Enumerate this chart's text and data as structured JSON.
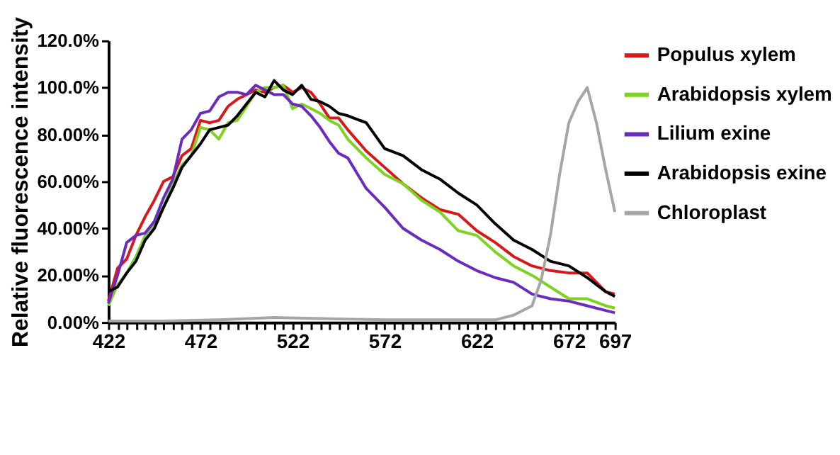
{
  "chart_data": {
    "type": "line",
    "ylabel": "Relative fluorescence intensity",
    "x": [
      422,
      427,
      432,
      437,
      442,
      447,
      452,
      457,
      462,
      467,
      472,
      477,
      482,
      487,
      492,
      497,
      502,
      507,
      512,
      517,
      522,
      527,
      532,
      537,
      542,
      547,
      552,
      562,
      572,
      582,
      592,
      602,
      612,
      622,
      632,
      642,
      652,
      662,
      672,
      682,
      692,
      697
    ],
    "series": [
      {
        "name": "Populus xylem",
        "color": "#d7191c",
        "values": [
          9,
          23,
          27,
          37,
          45,
          52,
          60,
          62,
          71,
          74,
          86,
          85,
          86,
          92,
          95,
          97,
          99,
          98,
          100,
          101,
          98,
          100,
          98,
          93,
          87,
          87,
          82,
          73,
          66,
          59,
          53,
          48,
          46,
          39,
          34,
          28,
          24,
          22,
          21,
          21,
          13,
          12
        ]
      },
      {
        "name": "Arabidopsis xylem",
        "color": "#7ed321",
        "values": [
          7,
          16,
          21,
          28,
          37,
          42,
          49,
          59,
          67,
          71,
          83,
          82,
          78,
          85,
          86,
          92,
          98,
          100,
          100,
          101,
          91,
          93,
          91,
          89,
          86,
          84,
          78,
          70,
          63,
          59,
          52,
          47,
          39,
          37,
          30,
          24,
          20,
          15,
          10,
          10,
          7,
          6
        ]
      },
      {
        "name": "Lilium exine",
        "color": "#6a2bbf",
        "values": [
          8,
          20,
          34,
          37,
          38,
          43,
          53,
          61,
          78,
          82,
          89,
          90,
          96,
          98,
          98,
          97,
          101,
          99,
          97,
          97,
          93,
          92,
          88,
          83,
          77,
          72,
          70,
          57,
          49,
          40,
          35,
          31,
          26,
          22,
          19,
          17,
          12,
          10,
          9,
          7,
          5,
          4
        ]
      },
      {
        "name": "Arabidopsis exine",
        "color": "#000000",
        "values": [
          13,
          15,
          21,
          26,
          35,
          40,
          49,
          57,
          66,
          71,
          76,
          82,
          83,
          84,
          88,
          93,
          98,
          96,
          103,
          99,
          97,
          101,
          95,
          94,
          92,
          89,
          88,
          85,
          74,
          71,
          65,
          61,
          55,
          50,
          42,
          35,
          31,
          26,
          24,
          19,
          13,
          11
        ]
      },
      {
        "name": "Chloroplast",
        "color": "#a6a6a6",
        "x": [
          422,
          452,
          482,
          512,
          542,
          572,
          602,
          632,
          642,
          652,
          657,
          662,
          667,
          672,
          677,
          682,
          687,
          692,
          697
        ],
        "values": [
          0.5,
          0.5,
          1,
          2,
          1.5,
          1,
          1,
          1,
          3,
          7,
          18,
          37,
          63,
          85,
          94,
          100,
          85,
          65,
          47
        ]
      }
    ],
    "xlim": [
      422,
      697
    ],
    "xticks": [
      422,
      {
        "value": 427,
        "label": null
      },
      {
        "value": 432,
        "label": null
      },
      {
        "value": 437,
        "label": null
      },
      {
        "value": 442,
        "label": null
      },
      {
        "value": 447,
        "label": null
      },
      {
        "value": 452,
        "label": null
      },
      {
        "value": 457,
        "label": null
      },
      {
        "value": 462,
        "label": null
      },
      {
        "value": 467,
        "label": null
      },
      472,
      {
        "value": 477,
        "label": null
      },
      {
        "value": 482,
        "label": null
      },
      {
        "value": 487,
        "label": null
      },
      {
        "value": 492,
        "label": null
      },
      {
        "value": 497,
        "label": null
      },
      {
        "value": 502,
        "label": null
      },
      {
        "value": 507,
        "label": null
      },
      {
        "value": 512,
        "label": null
      },
      {
        "value": 517,
        "label": null
      },
      522,
      {
        "value": 527,
        "label": null
      },
      {
        "value": 532,
        "label": null
      },
      {
        "value": 537,
        "label": null
      },
      {
        "value": 542,
        "label": null
      },
      {
        "value": 547,
        "label": null
      },
      {
        "value": 552,
        "label": null
      },
      {
        "value": 557,
        "label": null
      },
      {
        "value": 562,
        "label": null
      },
      {
        "value": 567,
        "label": null
      },
      572,
      {
        "value": 577,
        "label": null
      },
      {
        "value": 582,
        "label": null
      },
      {
        "value": 587,
        "label": null
      },
      {
        "value": 592,
        "label": null
      },
      {
        "value": 597,
        "label": null
      },
      {
        "value": 602,
        "label": null
      },
      {
        "value": 607,
        "label": null
      },
      {
        "value": 612,
        "label": null
      },
      {
        "value": 617,
        "label": null
      },
      622,
      {
        "value": 627,
        "label": null
      },
      {
        "value": 632,
        "label": null
      },
      {
        "value": 637,
        "label": null
      },
      {
        "value": 642,
        "label": null
      },
      {
        "value": 647,
        "label": null
      },
      {
        "value": 652,
        "label": null
      },
      {
        "value": 657,
        "label": null
      },
      {
        "value": 662,
        "label": null
      },
      {
        "value": 667,
        "label": null
      },
      672,
      {
        "value": 677,
        "label": null
      },
      {
        "value": 682,
        "label": null
      },
      {
        "value": 687,
        "label": null
      },
      {
        "value": 692,
        "label": null
      },
      697
    ],
    "ylim": [
      0,
      120
    ],
    "yticks": [
      {
        "value": 0,
        "label": "0.00%"
      },
      {
        "value": 20,
        "label": "20.00%"
      },
      {
        "value": 40,
        "label": "40.00%"
      },
      {
        "value": 60,
        "label": "60.00%"
      },
      {
        "value": 80,
        "label": "80.00%"
      },
      {
        "value": 100,
        "label": "100.0%"
      },
      {
        "value": 120,
        "label": "120.0%"
      }
    ],
    "grid": false,
    "legend": "top right",
    "marker": "none",
    "line_style": "solid"
  }
}
